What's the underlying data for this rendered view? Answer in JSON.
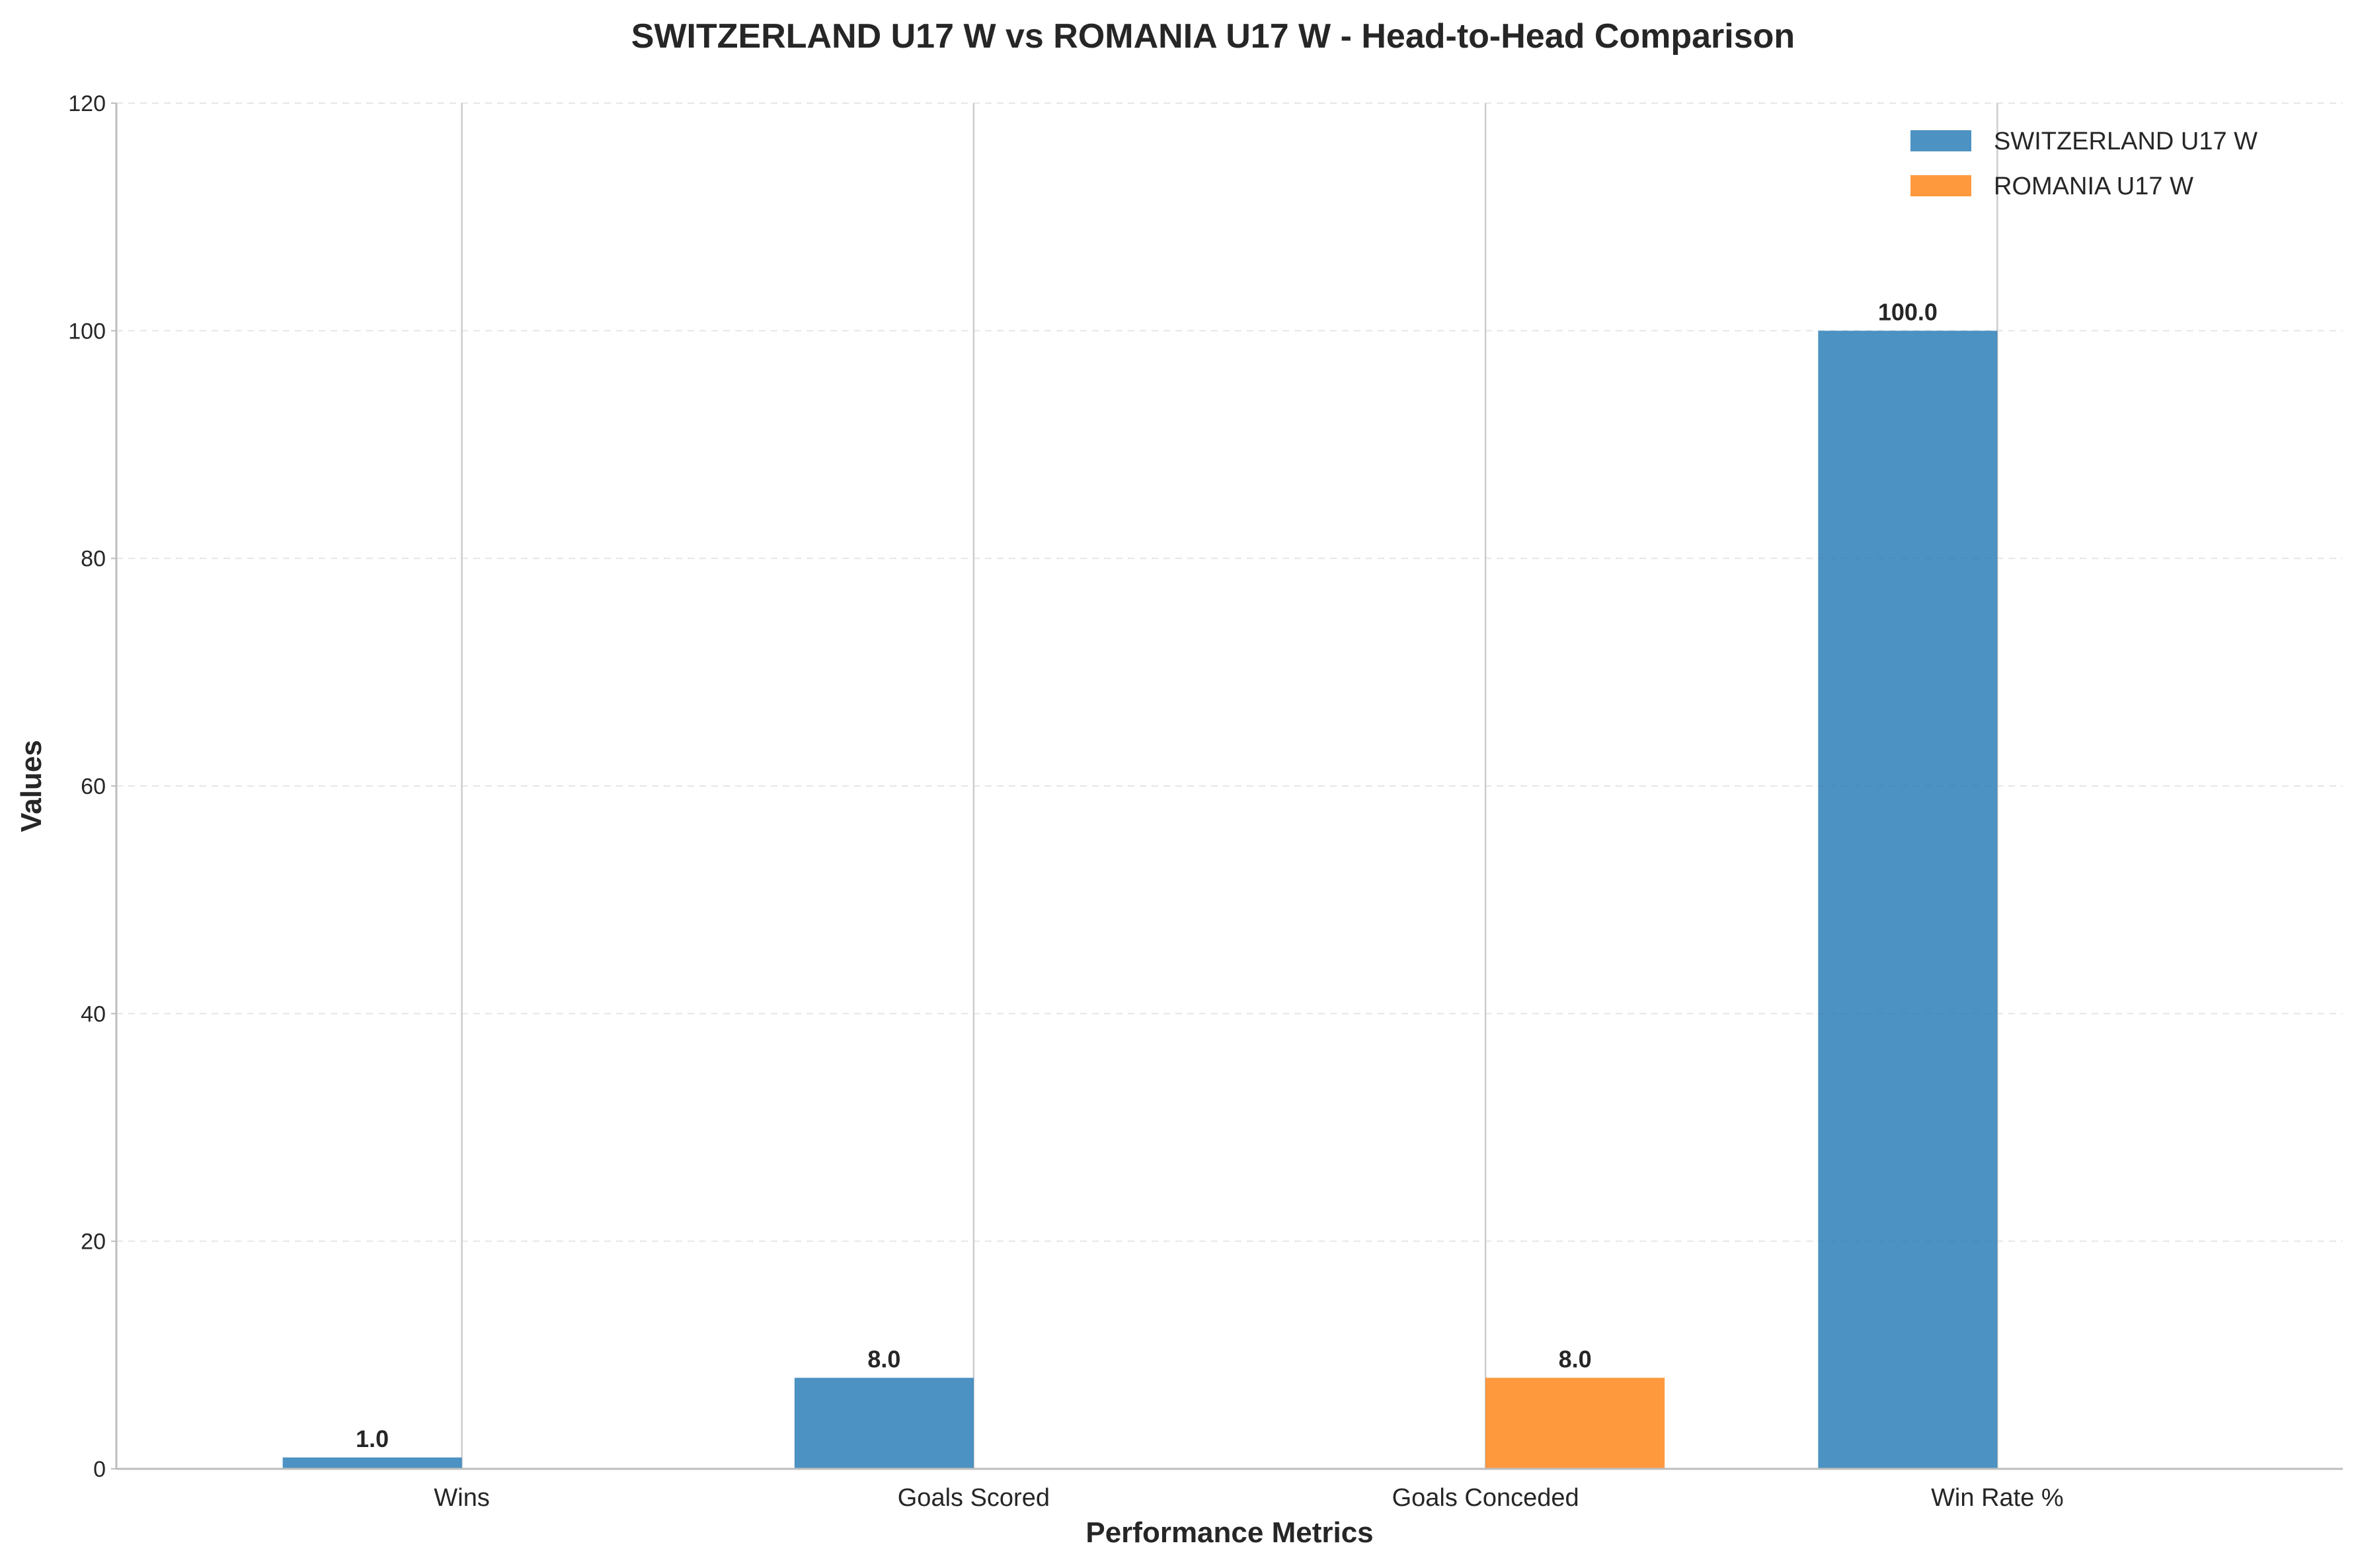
{
  "chart_data": {
    "type": "bar",
    "title": "SWITZERLAND U17 W vs ROMANIA U17 W - Head-to-Head Comparison",
    "xlabel": "Performance Metrics",
    "ylabel": "Values",
    "categories": [
      "Wins",
      "Goals Scored",
      "Goals Conceded",
      "Win Rate %"
    ],
    "series": [
      {
        "name": "SWITZERLAND U17 W",
        "color": "#1f77b4",
        "values": [
          1.0,
          8.0,
          0.0,
          100.0
        ],
        "labels": [
          "1.0",
          "8.0",
          "",
          "100.0"
        ]
      },
      {
        "name": "ROMANIA U17 W",
        "color": "#ff7f0e",
        "values": [
          0.0,
          0.0,
          8.0,
          0.0
        ],
        "labels": [
          "",
          "",
          "8.0",
          ""
        ]
      }
    ],
    "ylim": [
      0,
      120
    ],
    "yticks": [
      "0",
      "20",
      "40",
      "60",
      "80",
      "100",
      "120"
    ],
    "grid": true,
    "legend_position": "top-right"
  }
}
